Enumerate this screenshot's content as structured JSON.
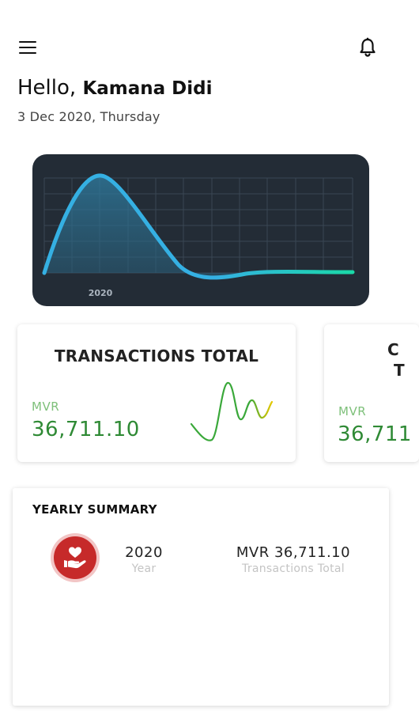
{
  "header": {
    "menu_icon": "hamburger-menu-icon",
    "bell_icon": "bell-icon",
    "greeting": "Hello,",
    "user_name": "Kamana Didi",
    "date": "3 Dec 2020, Thursday"
  },
  "chart_data": {
    "type": "area",
    "x_tick_labels": [
      "2020"
    ],
    "colors": {
      "background": "#232c36",
      "line": "#35b0e3",
      "line_end": "#1ad9a8",
      "grid": "#3a4654"
    },
    "grid": true
  },
  "cards": [
    {
      "title": "TRANSACTIONS TOTAL",
      "currency": "MVR",
      "amount": "36,711.10",
      "sparkline_colors": [
        "#3aa83a",
        "#e6c800"
      ]
    },
    {
      "title_line1": "C",
      "title_line2": "T",
      "currency": "MVR",
      "amount": "36,711"
    }
  ],
  "summary": {
    "title": "YEARLY SUMMARY",
    "icon": "heart-in-hand-icon",
    "year_value": "2020",
    "year_label": "Year",
    "total_value": "MVR 36,711.10",
    "total_label": "Transactions Total",
    "accent_color": "#c62a2a"
  }
}
